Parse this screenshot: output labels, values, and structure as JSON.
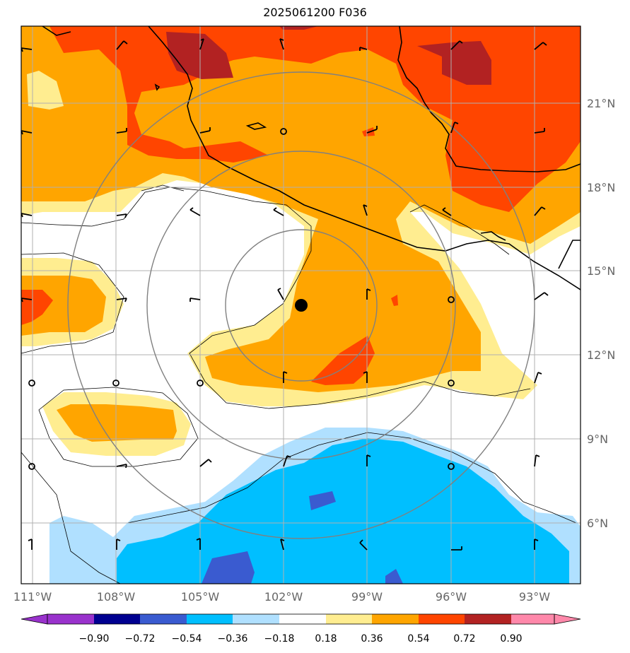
{
  "title": "2025061200 F036",
  "map": {
    "lat_range": [
      3.3,
      23.2
    ],
    "lon_range": [
      -111.4,
      -91.4
    ],
    "lat_ticks": [
      {
        "value": 21,
        "label": "21°N"
      },
      {
        "value": 18,
        "label": "18°N"
      },
      {
        "value": 15,
        "label": "15°N"
      },
      {
        "value": 12,
        "label": "12°N"
      },
      {
        "value": 9,
        "label": "9°N"
      },
      {
        "value": 6,
        "label": "6°N"
      }
    ],
    "lon_ticks": [
      {
        "value": -111,
        "label": "111°W"
      },
      {
        "value": -108,
        "label": "108°W"
      },
      {
        "value": -105,
        "label": "105°W"
      },
      {
        "value": -102,
        "label": "102°W"
      },
      {
        "value": -99,
        "label": "99°W"
      },
      {
        "value": -96,
        "label": "96°W"
      },
      {
        "value": -93,
        "label": "93°W"
      }
    ],
    "center_marker": {
      "lon": -101.4,
      "lat": 13.8
    },
    "range_rings_deg": [
      2.7,
      5.5,
      8.3
    ],
    "gridline_color": "#b0b0b0",
    "ring_color": "#808080"
  },
  "colorbar": {
    "labels": [
      "−0.90",
      "−0.72",
      "−0.54",
      "−0.36",
      "−0.18",
      "0.18",
      "0.36",
      "0.54",
      "0.72",
      "0.90"
    ],
    "colors": [
      "#9932cc",
      "#000090",
      "#3a5bd0",
      "#00bfff",
      "#b0e0ff",
      "#ffffff",
      "#ffed90",
      "#ffa500",
      "#ff4500",
      "#b22222",
      "#ff88aa"
    ]
  }
}
